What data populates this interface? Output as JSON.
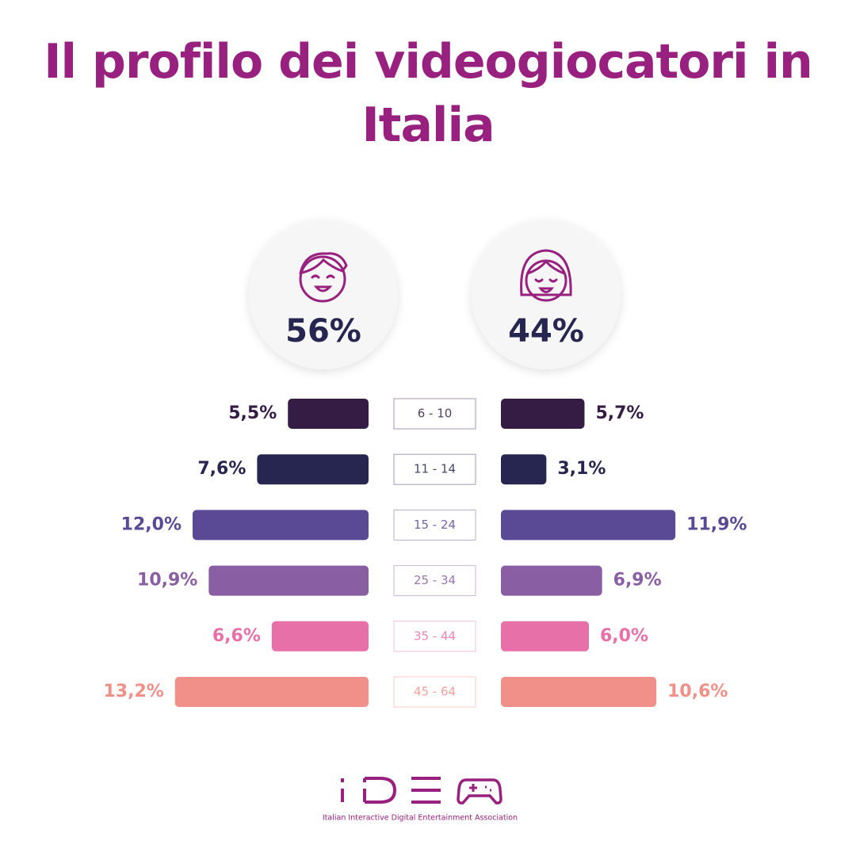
{
  "title": "Il profilo dei videogiocatori in Italia",
  "chart_data": {
    "type": "pyramid",
    "categories": [
      "6 - 10",
      "11 - 14",
      "15 - 24",
      "25 - 34",
      "35 - 44",
      "45 - 64"
    ],
    "colors": [
      "#341c45",
      "#262650",
      "#5a4a96",
      "#8a5ea3",
      "#e870a8",
      "#f09088"
    ],
    "series": [
      {
        "total": 56,
        "total_label": "56%",
        "values": [
          5.5,
          7.6,
          12.0,
          10.9,
          6.6,
          13.2
        ],
        "value_labels": [
          "5,5%",
          "7,6%",
          "12,0%",
          "10,9%",
          "6,6%",
          "13,2%"
        ]
      },
      {
        "total": 44,
        "total_label": "44%",
        "values": [
          5.7,
          3.1,
          11.9,
          6.9,
          6.0,
          10.6
        ],
        "value_labels": [
          "5,7%",
          "3,1%",
          "11,9%",
          "6,9%",
          "6,0%",
          "10,6%"
        ]
      }
    ]
  },
  "logo_caption": "Italian Interactive Digital Entertainment Association"
}
